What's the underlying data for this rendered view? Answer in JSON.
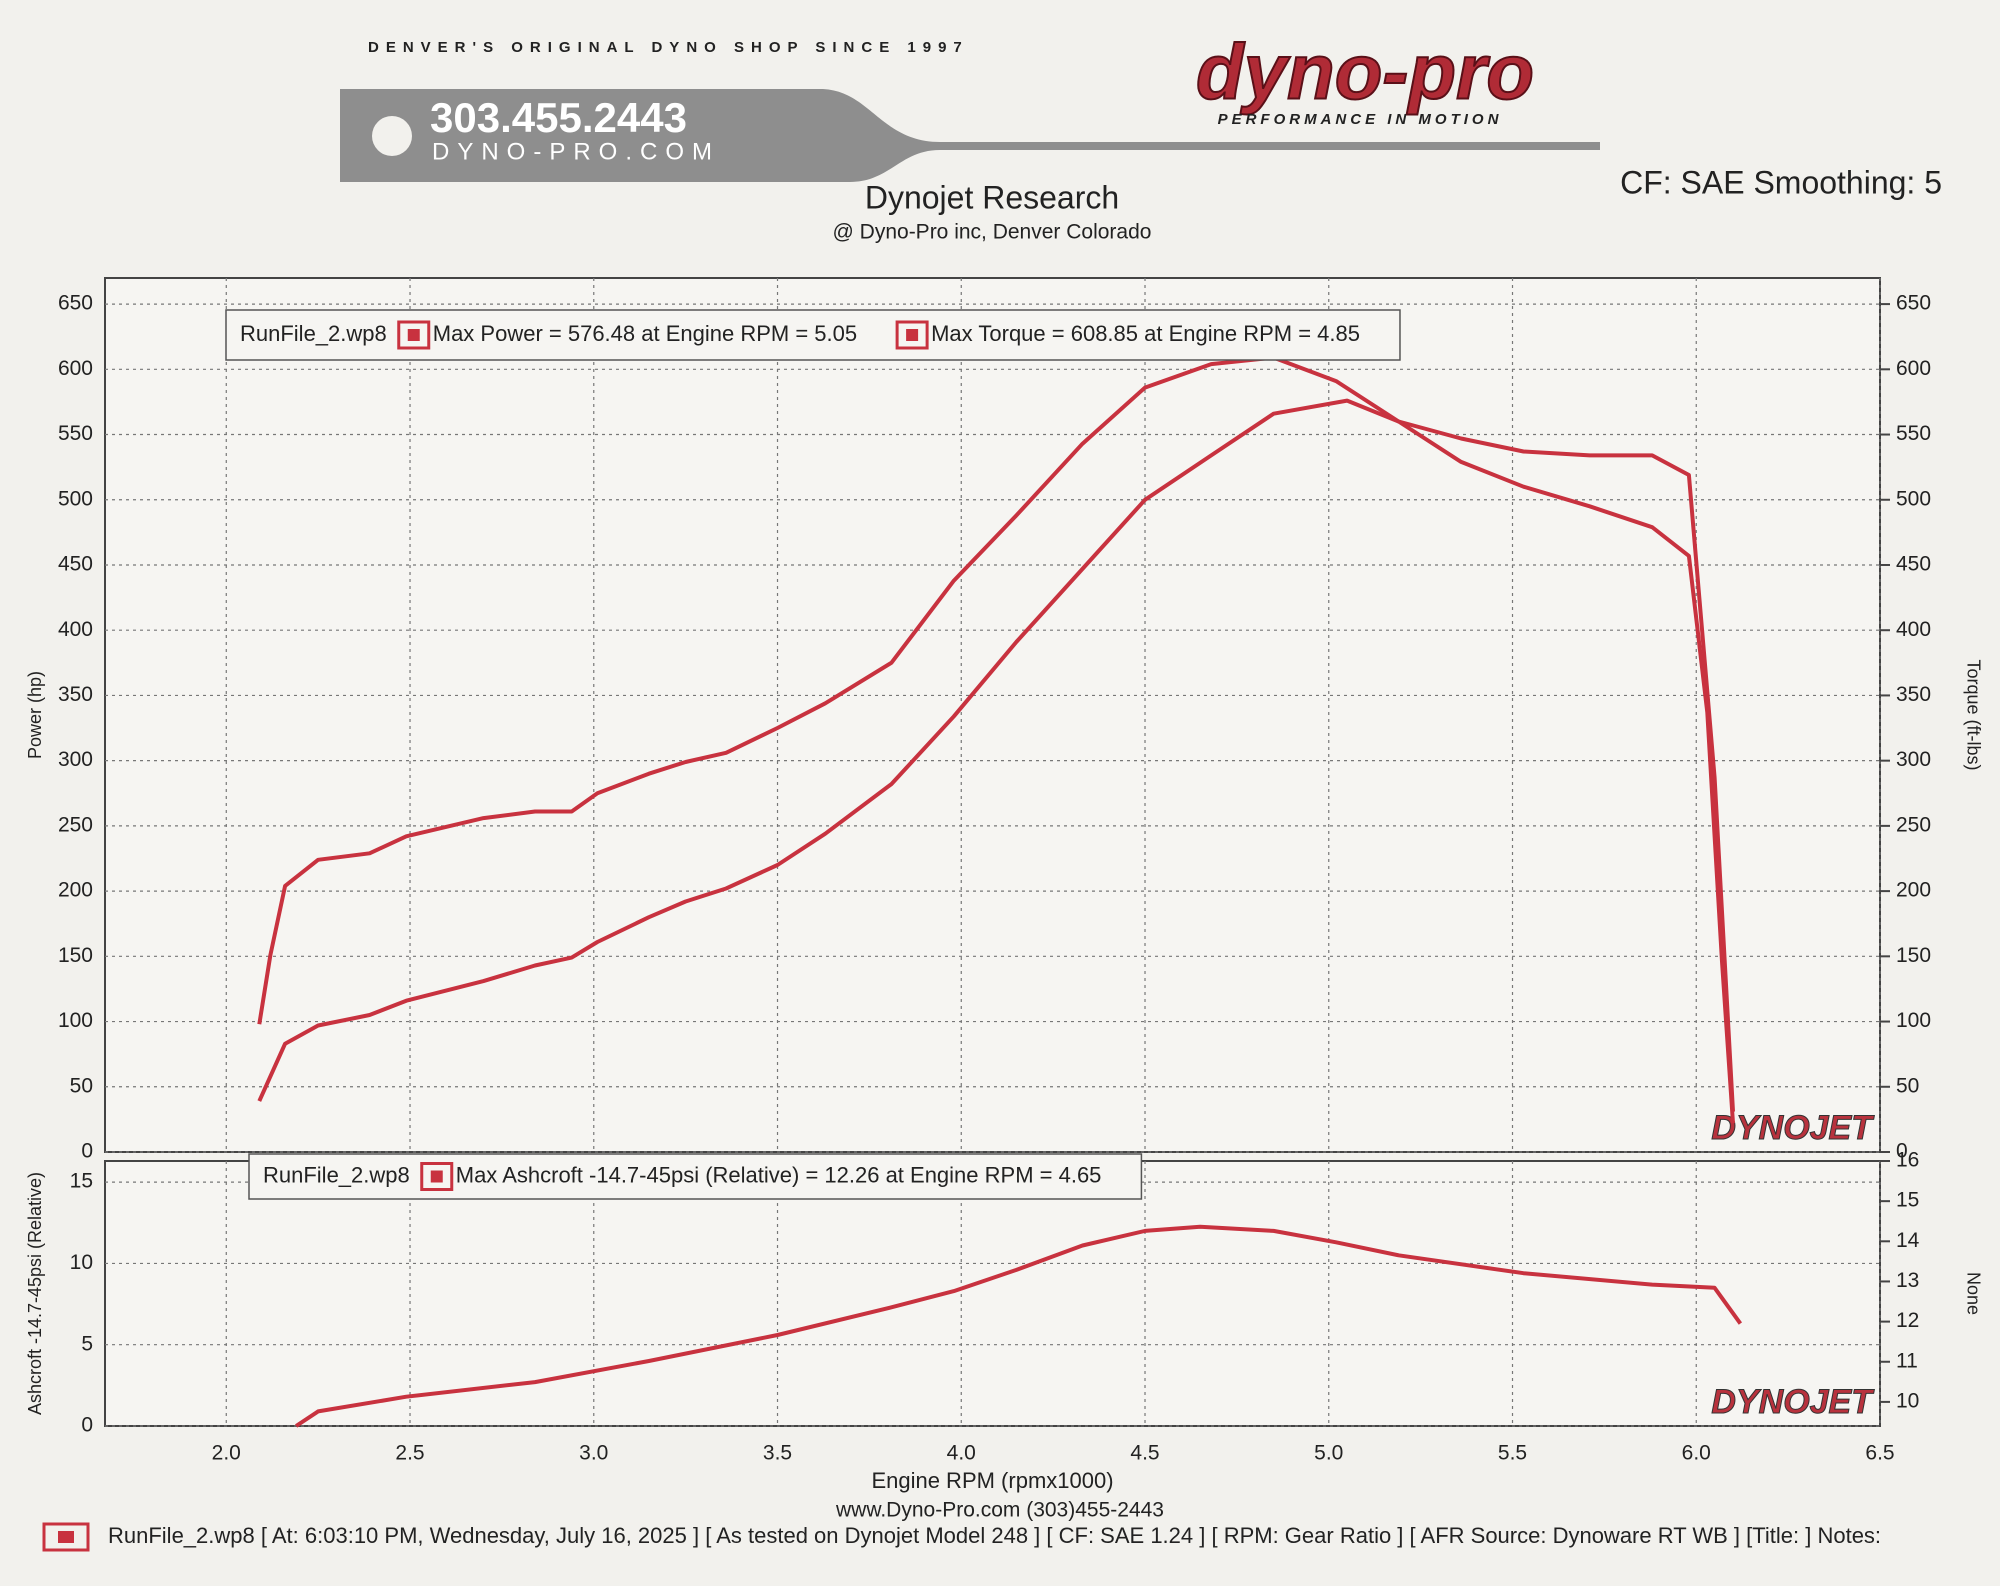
{
  "header": {
    "tagline": "DENVER'S ORIGINAL DYNO SHOP SINCE 1997",
    "phone": "303.455.2443",
    "website": "DYNO-PRO.COM",
    "logo": "dyno-pro",
    "slogan": "PERFORMANCE IN MOTION",
    "settings": "CF: SAE Smoothing: 5"
  },
  "chart_data": [
    {
      "type": "line",
      "title": "Dynojet Research",
      "subtitle": "@ Dyno-Pro inc,  Denver Colorado",
      "legend_title": "RunFile_2.wp8",
      "ylabel": "Power (hp)",
      "y2label": "Torque (ft-lbs)",
      "watermark": "DYNOJET",
      "xlim": [
        1.67,
        6.5
      ],
      "xticks": [
        2,
        2.5,
        3,
        3.5,
        4,
        4.5,
        5,
        5.5,
        6,
        6.5
      ],
      "ylim": [
        0,
        670
      ],
      "yticks": [
        0,
        50,
        100,
        150,
        200,
        250,
        300,
        350,
        400,
        450,
        500,
        550,
        600,
        650
      ],
      "y2lim": [
        0,
        670
      ],
      "y2ticks": [
        0,
        50,
        100,
        150,
        200,
        250,
        300,
        350,
        400,
        450,
        500,
        550,
        600,
        650
      ],
      "grid": true,
      "series": [
        {
          "name": "Max Power = 576.48 at Engine RPM = 5.05",
          "color": "#c8323f",
          "x": [
            2.09,
            2.16,
            2.25,
            2.39,
            2.49,
            2.7,
            2.84,
            2.94,
            3.01,
            3.15,
            3.25,
            3.36,
            3.5,
            3.63,
            3.81,
            3.98,
            4.15,
            4.33,
            4.5,
            4.68,
            4.85,
            5.05,
            5.19,
            5.36,
            5.53,
            5.71,
            5.88,
            5.98,
            6.05,
            6.1
          ],
          "values": [
            39,
            83,
            97,
            105,
            116,
            131,
            143,
            149,
            161,
            180,
            192,
            202,
            220,
            244,
            282,
            334,
            391,
            447,
            500,
            534,
            566,
            576,
            560,
            547,
            537,
            534,
            534,
            519,
            287,
            31
          ]
        },
        {
          "name": "Max Torque = 608.85 at Engine RPM = 4.85",
          "color": "#c8323f",
          "axis": "y2",
          "x": [
            2.09,
            2.12,
            2.16,
            2.25,
            2.39,
            2.49,
            2.7,
            2.84,
            2.94,
            3.01,
            3.15,
            3.25,
            3.36,
            3.5,
            3.63,
            3.81,
            3.98,
            4.15,
            4.33,
            4.5,
            4.68,
            4.85,
            5.02,
            5.19,
            5.36,
            5.53,
            5.71,
            5.88,
            5.98,
            6.03,
            6.07,
            6.1
          ],
          "values": [
            98,
            151,
            204,
            224,
            229,
            242,
            256,
            261,
            261,
            275,
            290,
            299,
            306,
            325,
            344,
            375,
            438,
            488,
            543,
            586,
            604,
            609,
            591,
            560,
            529,
            510,
            495,
            479,
            457,
            337,
            146,
            22
          ]
        }
      ]
    },
    {
      "type": "line",
      "legend_title": "RunFile_2.wp8",
      "ylabel": "Ashcroft -14.7-45psi (Relative)",
      "y2label": "None",
      "watermark": "DYNOJET",
      "xlabel": "Engine RPM (rpmx1000)",
      "xlim": [
        1.67,
        6.5
      ],
      "xticks": [
        {
          "value": 2,
          "label": "2.0"
        },
        {
          "value": 2.5,
          "label": "2.5"
        },
        {
          "value": 3,
          "label": "3.0"
        },
        {
          "value": 3.5,
          "label": "3.5"
        },
        {
          "value": 4,
          "label": "4.0"
        },
        {
          "value": 4.5,
          "label": "4.5"
        },
        {
          "value": 5,
          "label": "5.0"
        },
        {
          "value": 5.5,
          "label": "5.5"
        },
        {
          "value": 6,
          "label": "6.0"
        },
        {
          "value": 6.5,
          "label": "6.5"
        }
      ],
      "ylim": [
        0,
        16.3
      ],
      "yticks": [
        0,
        5,
        10,
        15
      ],
      "y2lim": [
        9.4,
        16
      ],
      "y2ticks": [
        10,
        11,
        12,
        13,
        14,
        15,
        16
      ],
      "grid": true,
      "series": [
        {
          "name": "Max Ashcroft -14.7-45psi (Relative) = 12.26 at Engine RPM = 4.65",
          "color": "#c8323f",
          "x": [
            2.19,
            2.25,
            2.49,
            2.84,
            3.15,
            3.5,
            3.81,
            3.98,
            4.15,
            4.33,
            4.5,
            4.65,
            4.85,
            5.02,
            5.19,
            5.53,
            5.88,
            6.05,
            6.12
          ],
          "values": [
            0,
            0.9,
            1.8,
            2.7,
            4.0,
            5.6,
            7.3,
            8.3,
            9.6,
            11.1,
            12.0,
            12.26,
            12.0,
            11.3,
            10.5,
            9.4,
            8.7,
            8.5,
            6.3
          ]
        }
      ]
    }
  ],
  "footer": {
    "contact": "www.Dyno-Pro.com (303)455-2443",
    "run_info": "RunFile_2.wp8 [ At: 6:03:10 PM, Wednesday, July 16, 2025 ] [ As tested on Dynojet Model 248 ] [ CF: SAE 1.24 ] [ RPM: Gear Ratio ] [ AFR Source: Dynoware RT WB ] [Title: ]  Notes:"
  }
}
